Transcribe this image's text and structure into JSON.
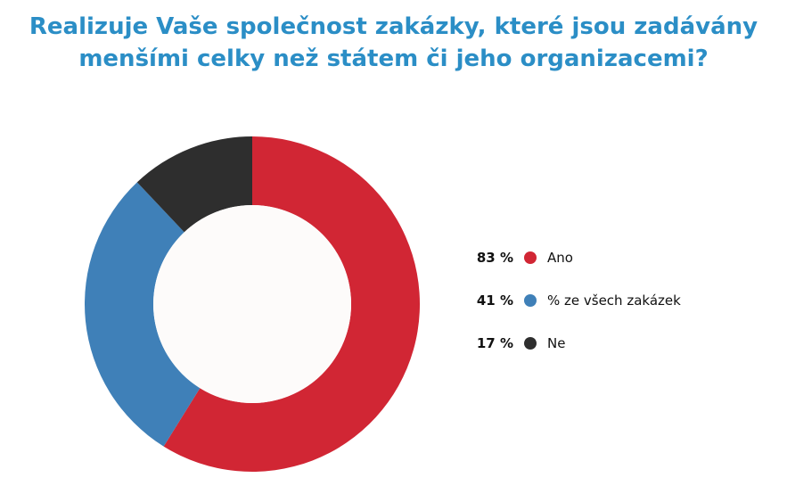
{
  "title": {
    "line1": "Realizuje Vaše společnost zakázky, které jsou zadávány",
    "line2": "menšími celky než státem či jeho organizacemi?"
  },
  "chart_data": {
    "type": "pie",
    "title": "Realizuje Vaše společnost zakázky, které jsou zadávány menšími celky než státem či jeho organizacemi?",
    "donut": true,
    "legend_position": "right",
    "series": [
      {
        "name": "Ano",
        "value": 83,
        "label": "83 %",
        "color": "#d12634"
      },
      {
        "name": "% ze všech zakázek",
        "value": 41,
        "label": "41 %",
        "color": "#3f80b8"
      },
      {
        "name": "Ne",
        "value": 17,
        "label": "17 %",
        "color": "#2e2e2e"
      }
    ]
  }
}
